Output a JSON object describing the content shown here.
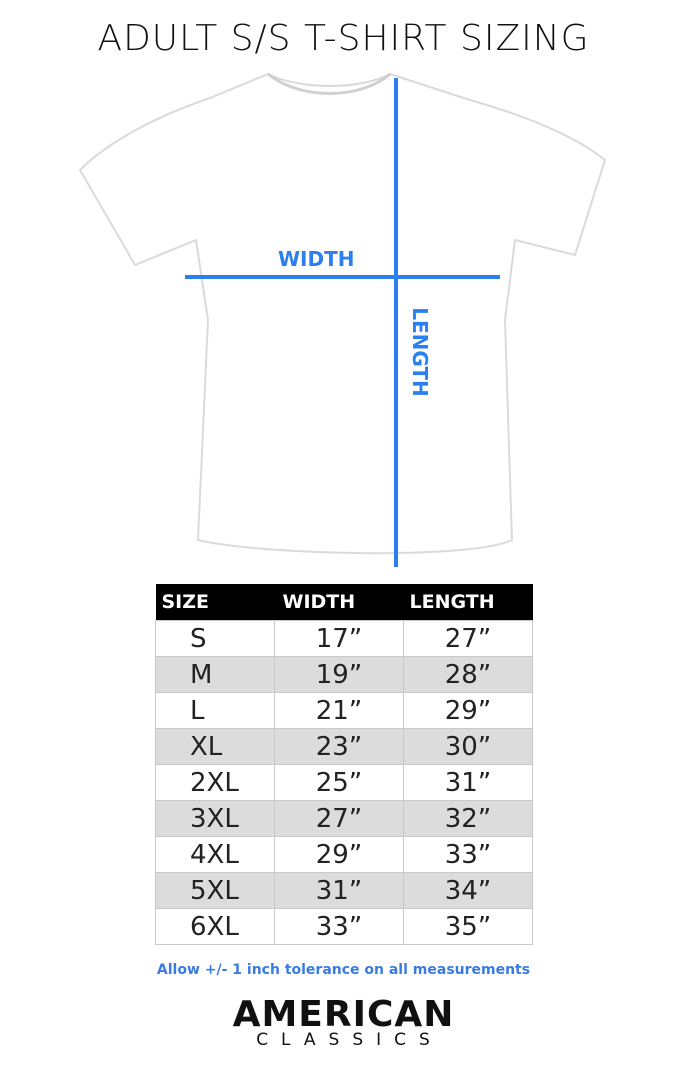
{
  "title": "ADULT S/S T-SHIRT SIZING",
  "diagram": {
    "width_label": "WIDTH",
    "length_label": "LENGTH",
    "line_color": "#2b7ff0"
  },
  "table": {
    "headers": [
      "SIZE",
      "WIDTH",
      "LENGTH"
    ],
    "rows": [
      [
        "S",
        "17”",
        "27”"
      ],
      [
        "M",
        "19”",
        "28”"
      ],
      [
        "L",
        "21”",
        "29”"
      ],
      [
        "XL",
        "23”",
        "30”"
      ],
      [
        "2XL",
        "25”",
        "31”"
      ],
      [
        "3XL",
        "27”",
        "32”"
      ],
      [
        "4XL",
        "29”",
        "33”"
      ],
      [
        "5XL",
        "31”",
        "34”"
      ],
      [
        "6XL",
        "33”",
        "35”"
      ]
    ]
  },
  "note": "Allow +/- 1 inch tolerance on all measurements",
  "logo": {
    "line1": "AMERICAN",
    "line2": "CLASSICS"
  }
}
